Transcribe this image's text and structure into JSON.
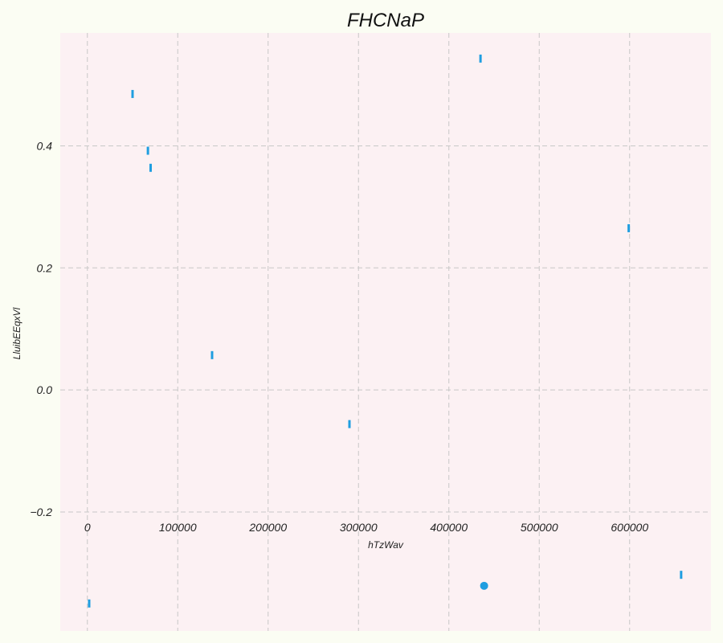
{
  "chart_data": {
    "type": "scatter",
    "title": "FHCNaP",
    "xlabel": "hTzWav",
    "ylabel": "LluibEEqxVl",
    "xlim": [
      -30000,
      690000
    ],
    "ylim": [
      -0.395,
      0.585
    ],
    "x_ticks": [
      0,
      100000,
      200000,
      300000,
      400000,
      500000,
      600000
    ],
    "x_tick_labels": [
      "0",
      "100000",
      "200000",
      "300000",
      "400000",
      "500000",
      "600000"
    ],
    "y_ticks": [
      -0.2,
      0.0,
      0.2,
      0.4
    ],
    "y_tick_labels": [
      "−0.2",
      "0.0",
      "0.2",
      "0.4"
    ],
    "grid": true,
    "series": [
      {
        "marker": "vline",
        "color": "#1f9ee0",
        "points": [
          {
            "x": 2000,
            "y": -0.35
          },
          {
            "x": 50000,
            "y": 0.485
          },
          {
            "x": 67000,
            "y": 0.392
          },
          {
            "x": 70000,
            "y": 0.364
          },
          {
            "x": 138000,
            "y": 0.057
          },
          {
            "x": 290000,
            "y": -0.056
          },
          {
            "x": 435000,
            "y": 0.543
          },
          {
            "x": 599000,
            "y": 0.265
          },
          {
            "x": 657000,
            "y": -0.303
          }
        ]
      },
      {
        "marker": "circle",
        "color": "#1f9ee0",
        "points": [
          {
            "x": 439000,
            "y": -0.321
          }
        ]
      }
    ],
    "colors": {
      "page_background": "#fbfdf3",
      "plot_background": "#fcf1f3",
      "grid": "#c8c8c8"
    }
  }
}
